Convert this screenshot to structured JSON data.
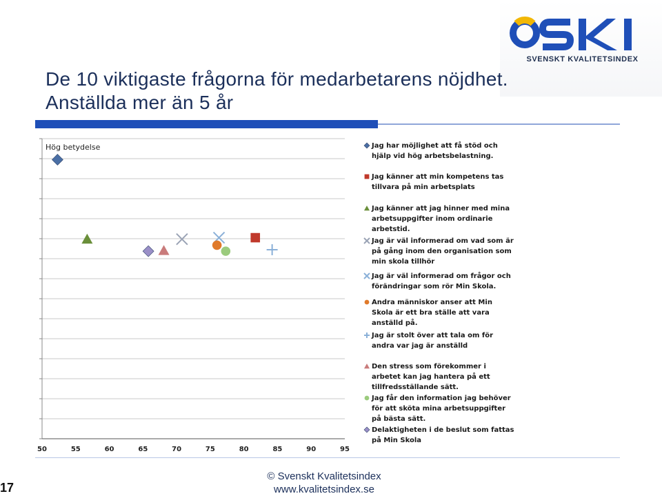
{
  "brand": {
    "logo_text": "SKI",
    "logo_subtitle": "SVENSKT KVALITETSINDEX",
    "colors": {
      "blue": "#1f4fb8",
      "yellow": "#f2b705",
      "title": "#1b2f5a"
    }
  },
  "slide": {
    "title_line1": "De 10 viktigaste frågorna för medarbetarens nöjdhet.",
    "title_line2": "Anställda mer än 5 år",
    "footer_line1": "© Svenskt Kvalitetsindex",
    "footer_line2": "www.kvalitetsindex.se",
    "page_number": "17"
  },
  "chart_data": {
    "type": "scatter",
    "ylabel": "Hög betydelse",
    "xlim": [
      50,
      95
    ],
    "xticks": [
      "50",
      "55",
      "60",
      "65",
      "70",
      "75",
      "80",
      "85",
      "90",
      "95"
    ],
    "y_scale_note": "",
    "series": [
      {
        "name": "Jag har möjlighet att få stöd och hjälp vid hög arbetsbelastning.",
        "marker": "diamond",
        "color": "#4a6fa5",
        "x": 52.3,
        "y": 0.93
      },
      {
        "name": "Jag känner att min kompetens tas tillvara på min arbetsplats",
        "marker": "square",
        "color": "#c0392b",
        "x": 81.7,
        "y": 0.67
      },
      {
        "name": "Jag känner att jag hinner med mina arbetsuppgifter inom ordinarie arbetstid.",
        "marker": "triangle",
        "color": "#6a8f3a",
        "x": 56.7,
        "y": 0.665
      },
      {
        "name": "Jag är väl informerad om vad som är på gång inom den organisation som min skola tillhör",
        "marker": "x",
        "color": "#9aa3b5",
        "x": 70.8,
        "y": 0.665
      },
      {
        "name": "Jag är väl informerad om frågor och förändringar som rör Min Skola.",
        "marker": "x",
        "color": "#8ab0d8",
        "x": 76.3,
        "y": 0.67
      },
      {
        "name": "Andra människor anser att Min Skola är ett bra ställe att vara anställd på.",
        "marker": "circle",
        "color": "#e07a2a",
        "x": 76.0,
        "y": 0.645
      },
      {
        "name": "Jag är stolt över att tala om för andra var jag är anställd",
        "marker": "plus",
        "color": "#8ab0d8",
        "x": 84.2,
        "y": 0.63
      },
      {
        "name": "Den stress som förekommer i arbetet kan jag hantera på ett tillfredsställande sätt.",
        "marker": "triangle",
        "color": "#c97b7b",
        "x": 68.1,
        "y": 0.627
      },
      {
        "name": "Jag får den information jag behöver för att sköta mina arbetsuppgifter på bästa sätt.",
        "marker": "circle",
        "color": "#9bcb7d",
        "x": 77.3,
        "y": 0.625
      },
      {
        "name": "Delaktigheten i de beslut som fattas på Min Skola",
        "marker": "diamond",
        "color": "#9a8fc7",
        "x": 65.8,
        "y": 0.625
      }
    ]
  },
  "legend_items": [
    "Jag har möjlighet att få stöd och hjälp vid hög arbetsbelastning.",
    "Jag känner att min kompetens tas tillvara på min arbetsplats",
    "Jag känner att jag hinner med mina arbetsuppgifter inom ordinarie arbetstid.",
    "Jag är väl informerad om vad som är på gång inom den organisation som min skola tillhör",
    "Jag är väl informerad om frågor och förändringar som rör Min Skola.",
    "Andra människor anser att Min Skola är ett bra ställe att vara anställd på.",
    "Jag är stolt över att tala om för andra var jag är anställd",
    "Den stress som förekommer i arbetet kan jag hantera på ett tillfredsställande sätt.",
    "Jag får den information jag behöver för att sköta mina arbetsuppgifter på bästa sätt.",
    "Delaktigheten i de beslut som fattas på Min Skola"
  ]
}
